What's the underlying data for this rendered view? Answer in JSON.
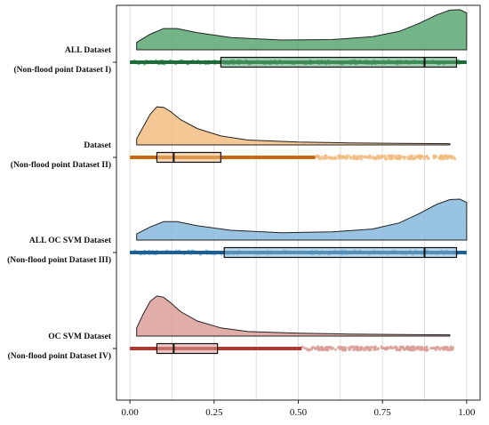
{
  "chart_data": {
    "type": "raincloud",
    "xlim": [
      -0.04,
      1.04
    ],
    "x_ticks": [
      0.0,
      0.25,
      0.5,
      0.75,
      1.0
    ],
    "x_tick_labels": [
      "0.00",
      "0.25",
      "0.50",
      "0.75",
      "1.00"
    ],
    "grid": "vertical",
    "groups": [
      {
        "label_line1": "ALL Dataset",
        "label_line2": "(Non-flood point Dataset I)",
        "color": "#5aa874",
        "dark": "#1f6b3a",
        "box": {
          "q1": 0.27,
          "median": 0.875,
          "q3": 0.97
        },
        "whisker": [
          0.0,
          1.0
        ],
        "points_range": [
          0.0,
          1.0
        ],
        "density": [
          [
            0.02,
            0.18
          ],
          [
            0.06,
            0.38
          ],
          [
            0.1,
            0.52
          ],
          [
            0.14,
            0.52
          ],
          [
            0.2,
            0.42
          ],
          [
            0.3,
            0.3
          ],
          [
            0.45,
            0.24
          ],
          [
            0.6,
            0.25
          ],
          [
            0.72,
            0.32
          ],
          [
            0.8,
            0.45
          ],
          [
            0.86,
            0.65
          ],
          [
            0.91,
            0.85
          ],
          [
            0.95,
            0.97
          ],
          [
            0.98,
            0.98
          ],
          [
            1.0,
            0.9
          ]
        ]
      },
      {
        "label_line1": "Dataset",
        "label_line2": "(Non-flood point Dataset II)",
        "color": "#f2bd82",
        "dark": "#c8680f",
        "box": {
          "q1": 0.08,
          "median": 0.13,
          "q3": 0.27
        },
        "whisker": [
          0.0,
          0.55
        ],
        "points_range": [
          0.55,
          0.97
        ],
        "density": [
          [
            0.02,
            0.15
          ],
          [
            0.04,
            0.45
          ],
          [
            0.06,
            0.75
          ],
          [
            0.08,
            0.93
          ],
          [
            0.1,
            0.92
          ],
          [
            0.12,
            0.82
          ],
          [
            0.15,
            0.62
          ],
          [
            0.2,
            0.4
          ],
          [
            0.27,
            0.22
          ],
          [
            0.35,
            0.12
          ],
          [
            0.5,
            0.07
          ],
          [
            0.65,
            0.05
          ],
          [
            0.8,
            0.04
          ],
          [
            0.95,
            0.03
          ]
        ]
      },
      {
        "label_line1": "ALL OC SVM Dataset",
        "label_line2": "(Non-flood point Dataset III)",
        "color": "#86b9dc",
        "dark": "#1c5f93",
        "box": {
          "q1": 0.28,
          "median": 0.875,
          "q3": 0.97
        },
        "whisker": [
          0.0,
          1.0
        ],
        "points_range": [
          0.0,
          1.0
        ],
        "density": [
          [
            0.02,
            0.15
          ],
          [
            0.06,
            0.32
          ],
          [
            0.1,
            0.45
          ],
          [
            0.14,
            0.45
          ],
          [
            0.2,
            0.35
          ],
          [
            0.3,
            0.24
          ],
          [
            0.45,
            0.18
          ],
          [
            0.6,
            0.2
          ],
          [
            0.72,
            0.27
          ],
          [
            0.8,
            0.42
          ],
          [
            0.86,
            0.65
          ],
          [
            0.91,
            0.87
          ],
          [
            0.95,
            0.99
          ],
          [
            0.98,
            1.0
          ],
          [
            1.0,
            0.92
          ]
        ]
      },
      {
        "label_line1": "OC SVM Dataset",
        "label_line2": "(Non-flood point Dataset IV)",
        "color": "#dc9f99",
        "dark": "#b0392d",
        "box": {
          "q1": 0.08,
          "median": 0.13,
          "q3": 0.26
        },
        "whisker": [
          0.0,
          0.51
        ],
        "points_range": [
          0.51,
          0.96
        ],
        "density": [
          [
            0.02,
            0.2
          ],
          [
            0.04,
            0.55
          ],
          [
            0.06,
            0.85
          ],
          [
            0.08,
            0.98
          ],
          [
            0.1,
            0.95
          ],
          [
            0.12,
            0.82
          ],
          [
            0.15,
            0.6
          ],
          [
            0.2,
            0.37
          ],
          [
            0.27,
            0.2
          ],
          [
            0.35,
            0.11
          ],
          [
            0.5,
            0.07
          ],
          [
            0.65,
            0.05
          ],
          [
            0.8,
            0.04
          ],
          [
            0.95,
            0.03
          ]
        ]
      }
    ]
  }
}
